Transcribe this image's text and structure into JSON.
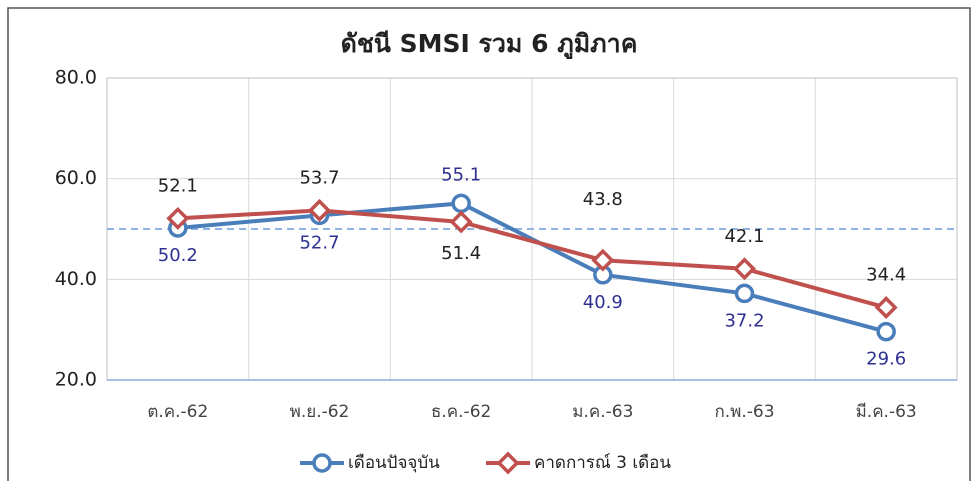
{
  "chart_data": {
    "type": "line",
    "title": "ดัชนี SMSI รวม 6 ภูมิภาค",
    "categories": [
      "ต.ค.-62",
      "พ.ย.-62",
      "ธ.ค.-62",
      "ม.ค.-63",
      "ก.พ.-63",
      "มี.ค.-63"
    ],
    "series": [
      {
        "name": "เดือนปัจจุบัน",
        "color": "#4a7ebb",
        "values": [
          50.2,
          52.7,
          55.1,
          40.9,
          37.2,
          29.6
        ]
      },
      {
        "name": "คาดการณ์ 3 เดือน",
        "color": "#c0504d",
        "values": [
          52.1,
          53.7,
          51.4,
          43.8,
          42.1,
          34.4
        ]
      }
    ],
    "ylim": [
      20,
      80
    ],
    "yticks": [
      {
        "value": 20,
        "label": "20.0"
      },
      {
        "value": 40,
        "label": "40.0"
      },
      {
        "value": 60,
        "label": "60.0"
      },
      {
        "value": 80,
        "label": "80.0"
      }
    ],
    "reference_line": 50,
    "grid": true,
    "legend": "bottom"
  }
}
